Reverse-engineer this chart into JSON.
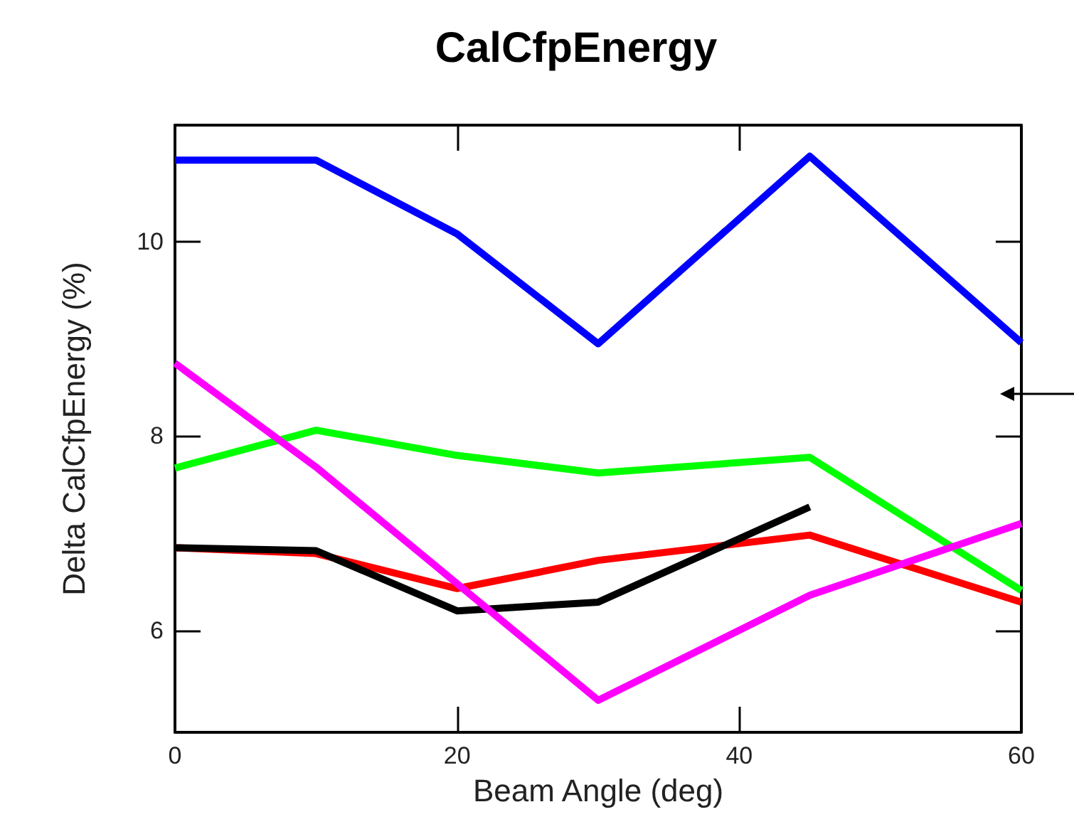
{
  "chart_data": {
    "type": "line",
    "title": "CalCfpEnergy",
    "xlabel": "Beam Angle (deg)",
    "ylabel": "Delta CalCfpEnergy (%)",
    "xlim": [
      0,
      60
    ],
    "xticks": [
      0,
      20,
      40,
      60
    ],
    "ylim": [
      4.95,
      11.2
    ],
    "yticks": [
      6,
      8,
      10
    ],
    "grid": false,
    "marker": "none",
    "line_style": "solid",
    "series": [
      {
        "color": "#0000ff",
        "x": [
          0,
          10,
          20,
          30,
          45,
          60
        ],
        "values": [
          10.84,
          10.84,
          10.08,
          8.95,
          10.88,
          8.96
        ]
      },
      {
        "color": "#00ff00",
        "x": [
          0,
          10,
          20,
          30,
          45,
          60
        ],
        "values": [
          7.67,
          8.06,
          7.8,
          7.62,
          7.78,
          6.41
        ]
      },
      {
        "color": "#ff0000",
        "x": [
          0,
          10,
          20,
          30,
          45,
          60
        ],
        "values": [
          6.85,
          6.79,
          6.43,
          6.72,
          6.98,
          6.29
        ]
      },
      {
        "color": "#000000",
        "x": [
          0,
          10,
          20,
          30,
          45
        ],
        "values": [
          6.85,
          6.82,
          6.2,
          6.29,
          7.27
        ]
      },
      {
        "color": "#ff00ff",
        "x": [
          0,
          10,
          30,
          45,
          60
        ],
        "values": [
          8.75,
          7.68,
          5.28,
          6.36,
          7.1
        ]
      }
    ]
  }
}
